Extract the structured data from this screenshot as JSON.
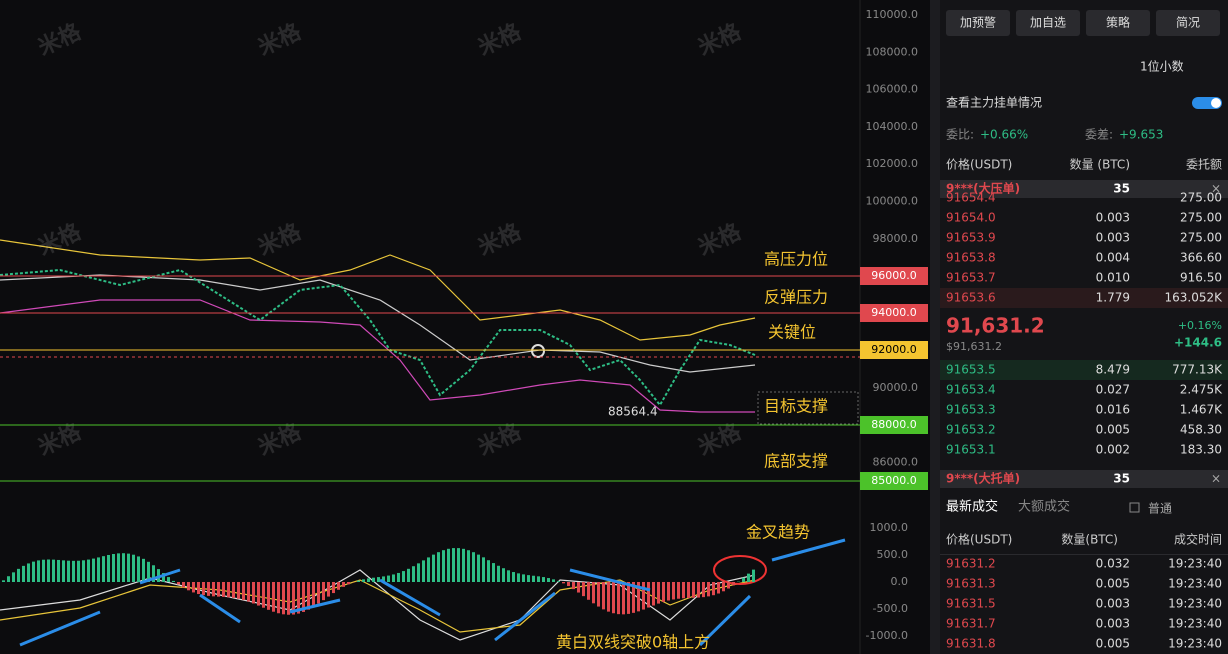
{
  "watermark": "米格",
  "price_axis": {
    "ticks": [
      "110000.0",
      "108000.0",
      "106000.0",
      "104000.0",
      "102000.0",
      "100000.0",
      "98000.0",
      "96000.0",
      "94000.0",
      "92000.0",
      "90000.0",
      "88000.0",
      "86000.0"
    ]
  },
  "levels": [
    {
      "price": "96000.0",
      "note": "高压力位"
    },
    {
      "price": "94000.0",
      "note": "反弹压力"
    },
    {
      "price": "92000.0",
      "note": "关键位"
    },
    {
      "price": "88000.0",
      "note": "目标支撑"
    },
    {
      "price": "85000.0",
      "note": "底部支撑"
    }
  ],
  "low_marker": "88564.4",
  "macd_axis": {
    "ticks": [
      "1000.0",
      "500.0",
      "0.0",
      "-500.0",
      "-1000.0"
    ]
  },
  "macd_notes": [
    "金叉趋势",
    "黄白双线突破0轴上方"
  ],
  "toolbar": {
    "buttons": [
      "加预警",
      "加自选",
      "策略",
      "简况"
    ]
  },
  "decimals": "1位小数",
  "depth_link": "查看主力挂单情况",
  "ratio": {
    "label": "委比:",
    "value": "+0.66%"
  },
  "diff": {
    "label": "委差:",
    "value": "+9.653"
  },
  "book": {
    "headers": [
      "价格(USDT)",
      "数量 (BTC)",
      "委托额"
    ],
    "ask_big": {
      "label": "9***(大压单)",
      "qty": "35"
    },
    "asks": [
      [
        "91654.4",
        "",
        "275.00"
      ],
      [
        "91654.0",
        "0.003",
        "275.00"
      ],
      [
        "91653.9",
        "0.003",
        "275.00"
      ],
      [
        "91653.8",
        "0.004",
        "366.60"
      ],
      [
        "91653.7",
        "0.010",
        "916.50"
      ],
      [
        "91653.6",
        "1.779",
        "163.052K"
      ]
    ],
    "last": {
      "price": "91,631.2",
      "usd": "$91,631.2",
      "pct": "+0.16%",
      "chg": "+144.6"
    },
    "bids": [
      [
        "91653.5",
        "8.479",
        "777.13K"
      ],
      [
        "91653.4",
        "0.027",
        "2.475K"
      ],
      [
        "91653.3",
        "0.016",
        "1.467K"
      ],
      [
        "91653.2",
        "0.005",
        "458.30"
      ],
      [
        "91653.1",
        "0.002",
        "183.30"
      ]
    ],
    "bid_big": {
      "label": "9***(大托单)",
      "qty": "35"
    }
  },
  "trades": {
    "tabs": [
      "最新成交",
      "大额成交"
    ],
    "filter": "普通",
    "headers": [
      "价格(USDT)",
      "数量(BTC)",
      "成交时间"
    ],
    "rows": [
      [
        "91631.2",
        "0.032",
        "19:23:40"
      ],
      [
        "91631.3",
        "0.005",
        "19:23:40"
      ],
      [
        "91631.5",
        "0.003",
        "19:23:40"
      ],
      [
        "91631.7",
        "0.003",
        "19:23:40"
      ],
      [
        "91631.8",
        "0.005",
        "19:23:40"
      ]
    ]
  }
}
